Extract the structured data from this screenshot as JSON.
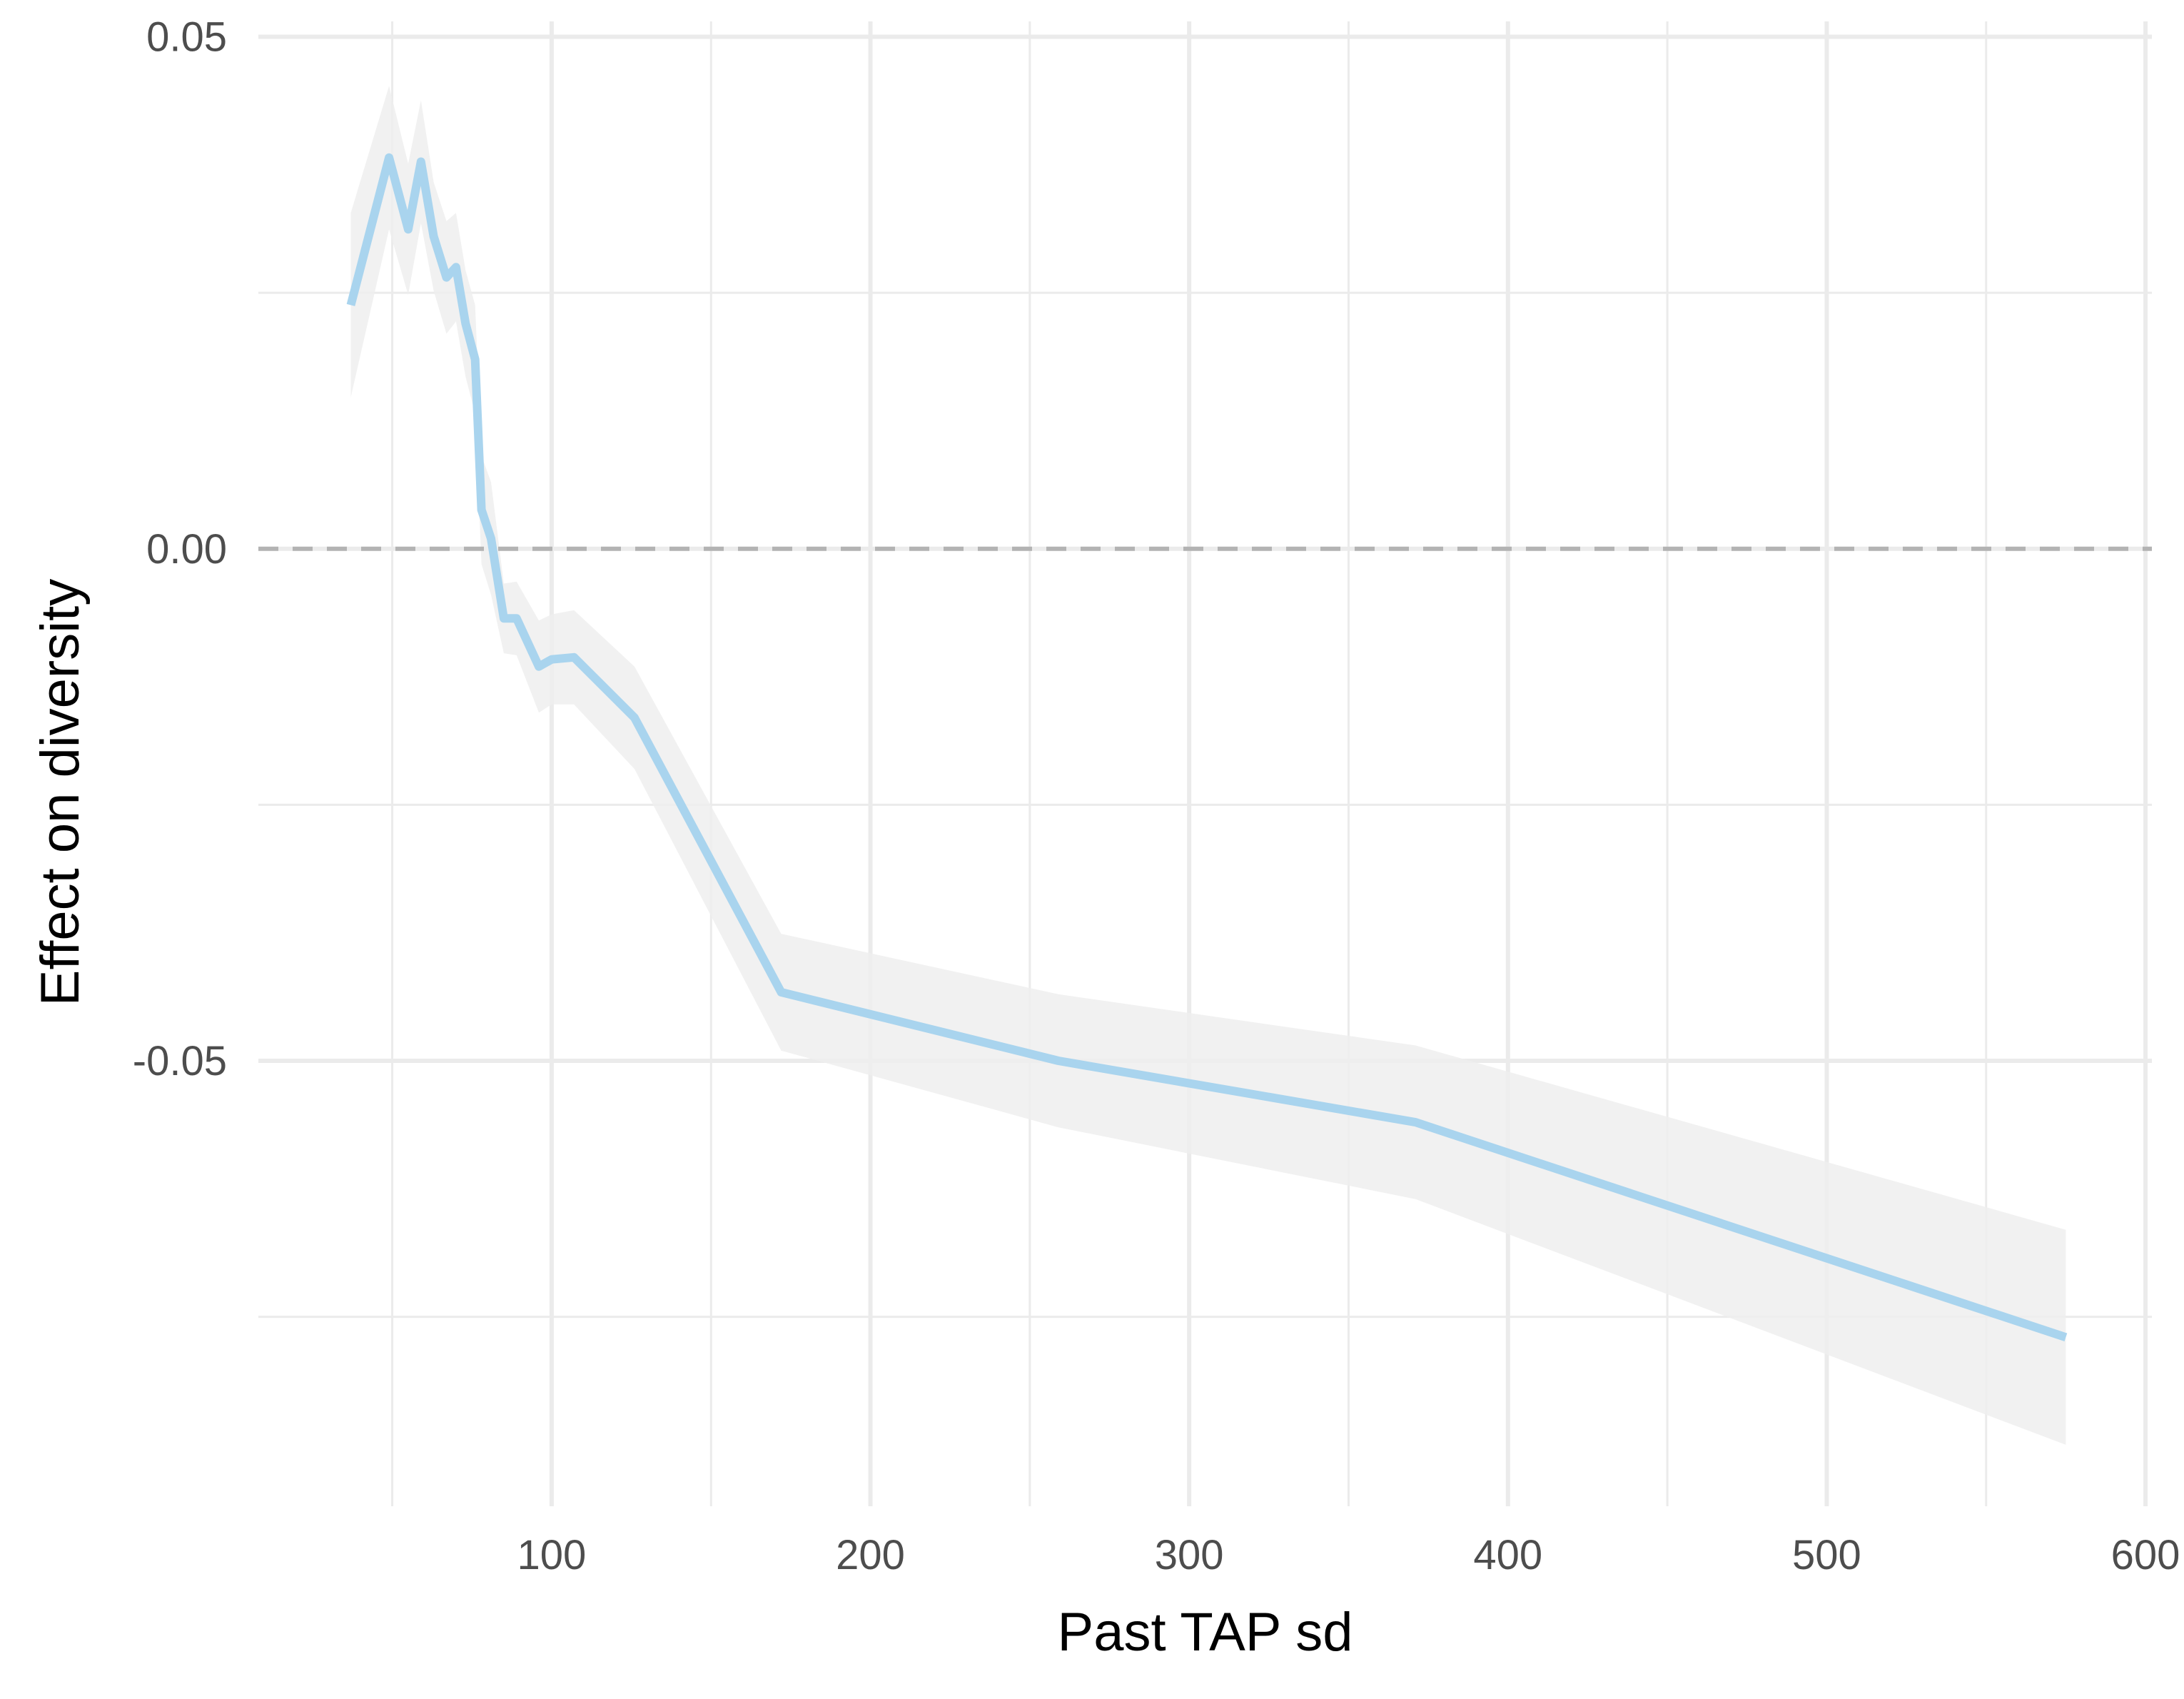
{
  "chart_data": {
    "type": "line",
    "xlabel": "Past TAP sd",
    "ylabel": "Effect on diversity",
    "xlim": [
      8,
      602
    ],
    "ylim": [
      -0.0935,
      0.0515
    ],
    "x_major_ticks": [
      100,
      200,
      300,
      400,
      500,
      600
    ],
    "x_tick_labels": [
      "100",
      "200",
      "300",
      "400",
      "500",
      "600"
    ],
    "x_minor_ticks": [
      50,
      150,
      250,
      350,
      450,
      550
    ],
    "y_major_ticks": [
      0.05,
      0,
      -0.05
    ],
    "y_tick_labels": [
      "0.05",
      "0.00",
      "-0.05"
    ],
    "y_minor_ticks": [
      0.025,
      -0.025,
      -0.075
    ],
    "grid": true,
    "reference_line": {
      "y": 0,
      "style": "dashed",
      "color": "#b3b3b3"
    },
    "colors": {
      "line": "#a9d4ee",
      "band": "#efefef",
      "grid": "#ebebeb",
      "tick_text": "#4d4d4d",
      "title_text": "#000000"
    },
    "series": [
      {
        "x": [
          37,
          49,
          55,
          59,
          63,
          67,
          70,
          73,
          76,
          78,
          81,
          85,
          89,
          96,
          100,
          107,
          126,
          172,
          259,
          371,
          575
        ],
        "y": [
          0.0238,
          0.0382,
          0.0312,
          0.0378,
          0.0305,
          0.0265,
          0.0275,
          0.022,
          0.0185,
          0.0038,
          0.001,
          -0.0068,
          -0.0068,
          -0.0115,
          -0.0108,
          -0.0106,
          -0.0165,
          -0.0433,
          -0.05,
          -0.056,
          -0.077
        ],
        "ci_lower": [
          0.0148,
          0.0312,
          0.0248,
          0.0318,
          0.0252,
          0.021,
          0.0222,
          0.0168,
          0.0132,
          -0.0015,
          -0.0045,
          -0.0102,
          -0.0104,
          -0.016,
          -0.0152,
          -0.0152,
          -0.0215,
          -0.049,
          -0.0565,
          -0.0635,
          -0.0875
        ],
        "ci_upper": [
          0.0328,
          0.0452,
          0.0376,
          0.0438,
          0.0358,
          0.032,
          0.0328,
          0.0272,
          0.0238,
          0.0091,
          0.0065,
          -0.0034,
          -0.0032,
          -0.007,
          -0.0064,
          -0.006,
          -0.0115,
          -0.0376,
          -0.0435,
          -0.0485,
          -0.0665
        ]
      }
    ]
  }
}
